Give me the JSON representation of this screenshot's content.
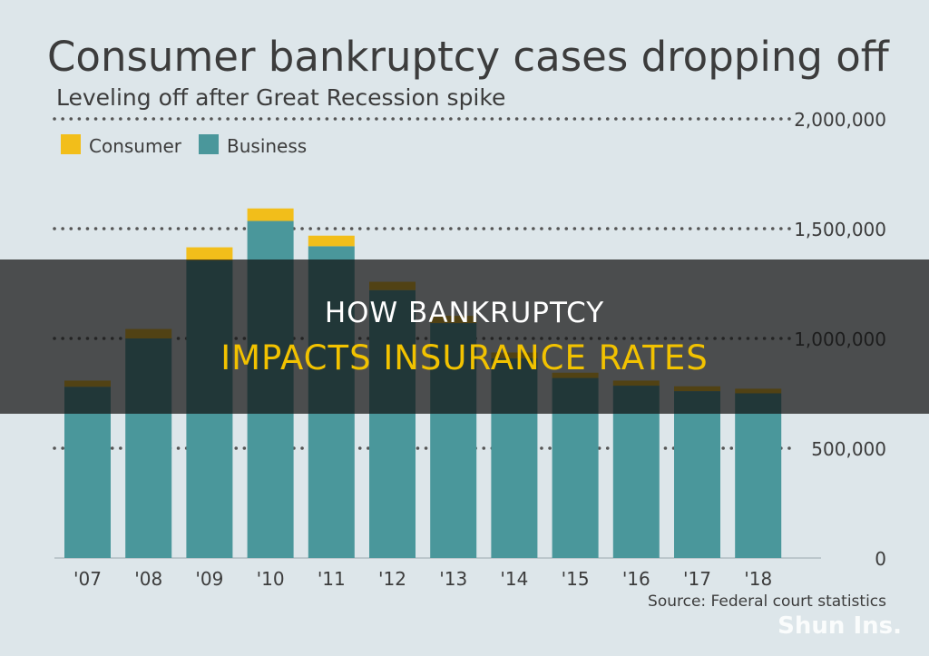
{
  "chart_data": {
    "type": "bar",
    "stacked": true,
    "title": "Consumer bankruptcy cases dropping off",
    "subtitle": "Leveling off after Great Recession spike",
    "categories": [
      "'07",
      "'08",
      "'09",
      "'10",
      "'11",
      "'12",
      "'13",
      "'14",
      "'15",
      "'16",
      "'17",
      "'18"
    ],
    "series": [
      {
        "name": "Business",
        "color": "#4a979b",
        "values": [
          780000,
          1000000,
          1355000,
          1535000,
          1420000,
          1220000,
          1070000,
          910000,
          820000,
          785000,
          760000,
          750000
        ]
      },
      {
        "name": "Consumer",
        "color": "#f2be1a",
        "values": [
          28000,
          43000,
          60000,
          57000,
          48000,
          38000,
          33000,
          26000,
          24000,
          23000,
          22000,
          21000
        ]
      }
    ],
    "yticks": [
      "2,000,000",
      "1,500,000",
      "1,000,000",
      "500,000",
      "0"
    ],
    "ylim": [
      0,
      2000000
    ],
    "grid": true,
    "legend_position": "top-left",
    "source": "Source: Federal court statistics"
  },
  "overlay": {
    "line1": "HOW BANKRUPTCY",
    "line2": "IMPACTS INSURANCE RATES"
  },
  "watermark": "Shun Ins.",
  "colors": {
    "background": "#dde6ea",
    "business": "#4a979b",
    "consumer": "#f2be1a",
    "banner": "rgba(18,18,18,0.72)",
    "banner_highlight": "#f2c200"
  }
}
